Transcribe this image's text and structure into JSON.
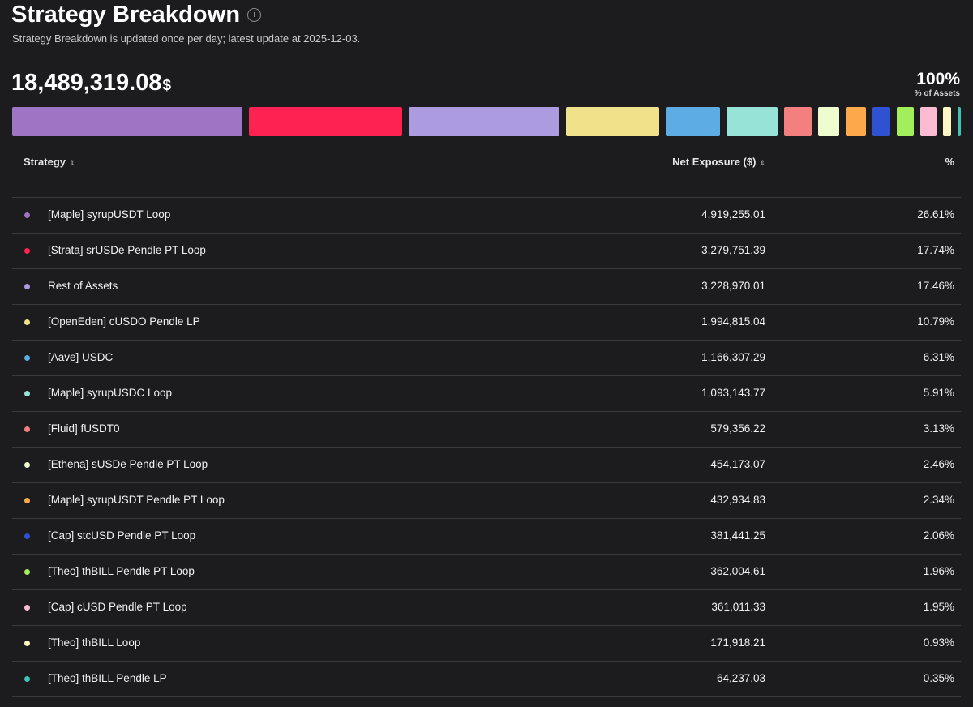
{
  "header": {
    "title": "Strategy Breakdown",
    "subtitle": "Strategy Breakdown is updated once per day; latest update at 2025-12-03.",
    "info_icon": "info-icon"
  },
  "summary": {
    "total_value": "18,489,319.08",
    "currency": "$",
    "percent": "100%",
    "percent_label": "% of Assets"
  },
  "table": {
    "col_strategy": "Strategy",
    "col_exposure": "Net Exposure ($)",
    "col_pct": "%",
    "sort_icon": "sort-icon",
    "rows": [
      {
        "name": "[Maple] syrupUSDT Loop",
        "value": "4,919,255.01",
        "pct": "26.61%",
        "color": "#a074c4"
      },
      {
        "name": "[Strata] srUSDe Pendle PT Loop",
        "value": "3,279,751.39",
        "pct": "17.74%",
        "color": "#fe2253"
      },
      {
        "name": "Rest of Assets",
        "value": "3,228,970.01",
        "pct": "17.46%",
        "color": "#ad9be0"
      },
      {
        "name": "[OpenEden] cUSDO Pendle LP",
        "value": "1,994,815.04",
        "pct": "10.79%",
        "color": "#f0e18a"
      },
      {
        "name": "[Aave] USDC",
        "value": "1,166,307.29",
        "pct": "6.31%",
        "color": "#5dade4"
      },
      {
        "name": "[Maple] syrupUSDC Loop",
        "value": "1,093,143.77",
        "pct": "5.91%",
        "color": "#97e3d8"
      },
      {
        "name": "[Fluid] fUSDT0",
        "value": "579,356.22",
        "pct": "3.13%",
        "color": "#f47f7f"
      },
      {
        "name": "[Ethena] sUSDe Pendle PT Loop",
        "value": "454,173.07",
        "pct": "2.46%",
        "color": "#effcd0"
      },
      {
        "name": "[Maple] syrupUSDT Pendle PT Loop",
        "value": "432,934.83",
        "pct": "2.34%",
        "color": "#fba94a"
      },
      {
        "name": "[Cap] stcUSD Pendle PT Loop",
        "value": "381,441.25",
        "pct": "2.06%",
        "color": "#2e52d2"
      },
      {
        "name": "[Theo] thBILL Pendle PT Loop",
        "value": "362,004.61",
        "pct": "1.96%",
        "color": "#a3ef5b"
      },
      {
        "name": "[Cap] cUSD Pendle PT Loop",
        "value": "361,011.33",
        "pct": "1.95%",
        "color": "#fbbcd3"
      },
      {
        "name": "[Theo] thBILL Loop",
        "value": "171,918.21",
        "pct": "0.93%",
        "color": "#fbf8c6"
      },
      {
        "name": "[Theo] thBILL Pendle LP",
        "value": "64,237.03",
        "pct": "0.35%",
        "color": "#3fc5b8"
      }
    ]
  }
}
